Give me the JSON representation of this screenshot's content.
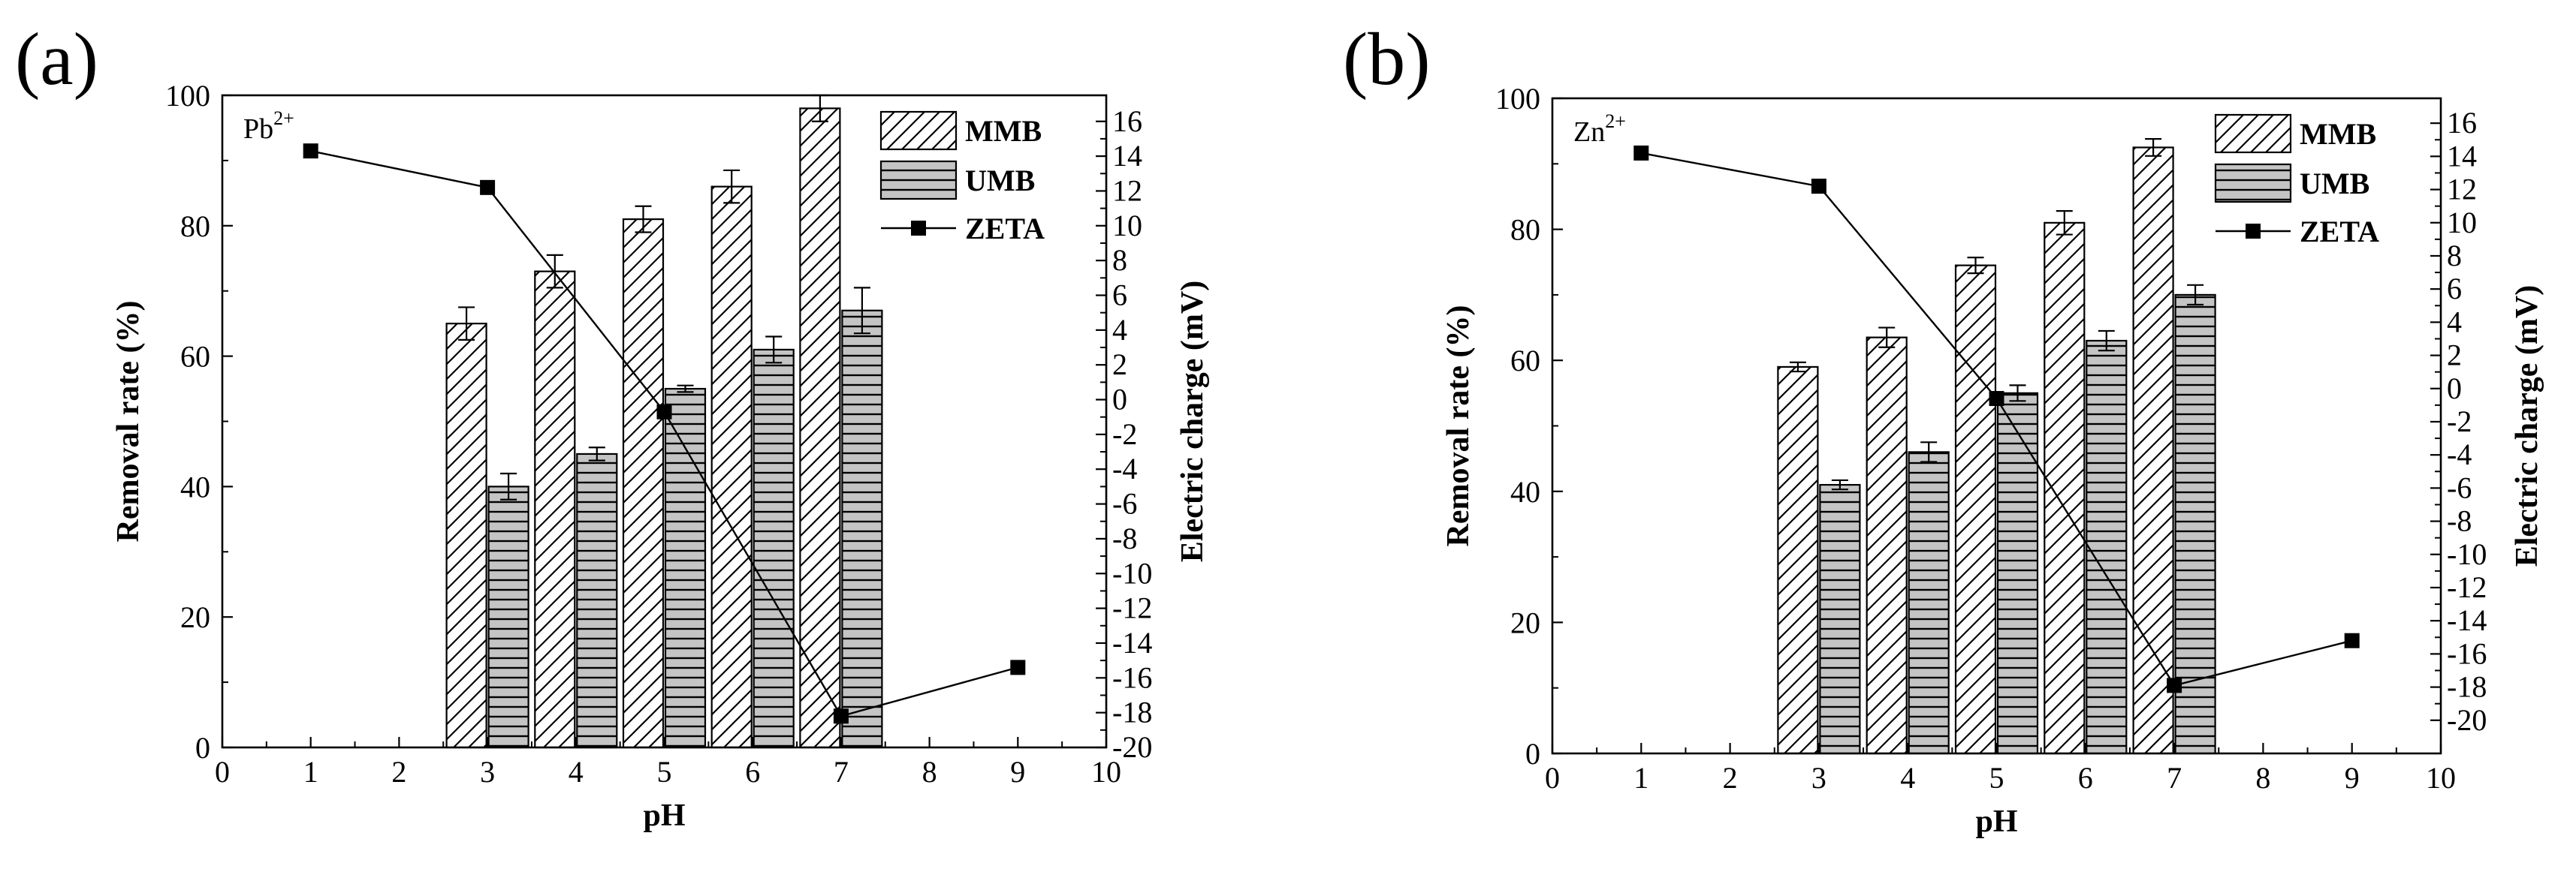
{
  "figure": {
    "panels_count": 2
  },
  "chart_data": [
    {
      "type": "bar",
      "panel_label": "(a)",
      "ion": {
        "base": "Pb",
        "charge": "2+"
      },
      "xlabel": "pH",
      "ylabel": "Removal rate (%)",
      "y2label": "Electric charge (mV)",
      "xlim": [
        0,
        10
      ],
      "ylim": [
        0,
        100
      ],
      "y2lim": [
        -20,
        17.5
      ],
      "xticks": [
        "0",
        "1",
        "2",
        "3",
        "4",
        "5",
        "6",
        "7",
        "8",
        "9",
        "10"
      ],
      "yticks": [
        "0",
        "20",
        "40",
        "60",
        "80",
        "100"
      ],
      "y2ticks": [
        "-20",
        "-18",
        "-16",
        "-14",
        "-12",
        "-10",
        "-8",
        "-6",
        "-4",
        "-2",
        "0",
        "2",
        "4",
        "6",
        "8",
        "10",
        "12",
        "14",
        "16"
      ],
      "categories": [
        3,
        4,
        5,
        6,
        7
      ],
      "series": [
        {
          "name": "MMB",
          "values": [
            65,
            73,
            81,
            86,
            98
          ],
          "errors": [
            2.5,
            2.5,
            2,
            2.5,
            2
          ]
        },
        {
          "name": "UMB",
          "values": [
            40,
            45,
            55,
            61,
            67
          ],
          "errors": [
            2,
            1,
            0.5,
            2,
            3.5
          ]
        }
      ],
      "line": {
        "name": "ZETA",
        "x": [
          1,
          3,
          5,
          7,
          9
        ],
        "y": [
          14.3,
          12.2,
          -0.7,
          -18.2,
          -15.4
        ]
      },
      "legend": [
        "MMB",
        "UMB",
        "ZETA"
      ],
      "legend_position": "top-right"
    },
    {
      "type": "bar",
      "panel_label": "(b)",
      "ion": {
        "base": "Zn",
        "charge": "2+"
      },
      "xlabel": "pH",
      "ylabel": "Removal rate (%)",
      "y2label": "Electric charge (mV)",
      "xlim": [
        0,
        10
      ],
      "ylim": [
        0,
        100
      ],
      "y2lim": [
        -22,
        17.5
      ],
      "xticks": [
        "0",
        "1",
        "2",
        "3",
        "4",
        "5",
        "6",
        "7",
        "8",
        "9",
        "10"
      ],
      "yticks": [
        "0",
        "20",
        "40",
        "60",
        "80",
        "100"
      ],
      "y2ticks": [
        "-20",
        "-18",
        "-16",
        "-14",
        "-12",
        "-10",
        "-8",
        "-6",
        "-4",
        "-2",
        "0",
        "2",
        "4",
        "6",
        "8",
        "10",
        "12",
        "14",
        "16"
      ],
      "categories": [
        3,
        4,
        5,
        6,
        7
      ],
      "series": [
        {
          "name": "MMB",
          "values": [
            59,
            63.5,
            74.5,
            81,
            92.5
          ],
          "errors": [
            0.7,
            1.5,
            1.2,
            1.8,
            1.3
          ]
        },
        {
          "name": "UMB",
          "values": [
            41,
            46,
            55,
            63,
            70
          ],
          "errors": [
            0.7,
            1.5,
            1.2,
            1.5,
            1.5
          ]
        }
      ],
      "line": {
        "name": "ZETA",
        "x": [
          1,
          3,
          5,
          7,
          9
        ],
        "y": [
          14.2,
          12.2,
          -0.6,
          -17.9,
          -15.2
        ]
      },
      "legend": [
        "MMB",
        "UMB",
        "ZETA"
      ],
      "legend_position": "top-right"
    }
  ]
}
